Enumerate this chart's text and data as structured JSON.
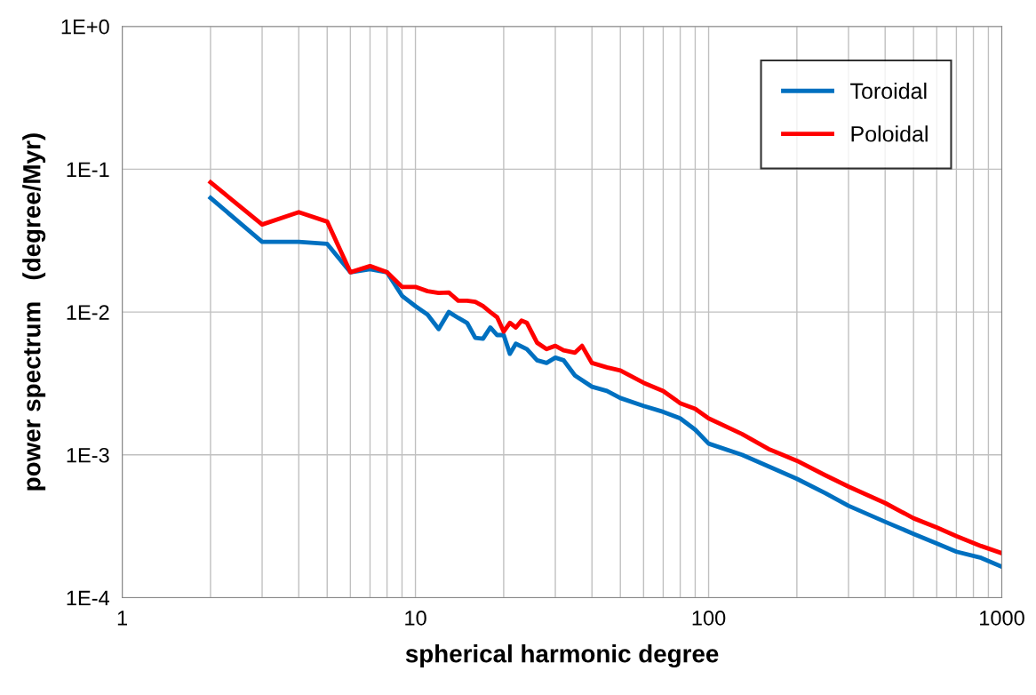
{
  "chart_data": {
    "type": "line",
    "xlabel": "spherical harmonic degree",
    "ylabel": "power spectrum   (degree/Myr)",
    "log": "xy",
    "grid": true,
    "legend": "top right",
    "line_style": "solid",
    "marker": "none",
    "xlim": [
      1,
      1000
    ],
    "ylim": [
      0.0001,
      1
    ],
    "xticks": [
      1,
      {
        "value": 2,
        "label": null
      },
      {
        "value": 3,
        "label": null
      },
      {
        "value": 4,
        "label": null
      },
      {
        "value": 5,
        "label": null
      },
      {
        "value": 6,
        "label": null
      },
      {
        "value": 7,
        "label": null
      },
      {
        "value": 8,
        "label": null
      },
      {
        "value": 9,
        "label": null
      },
      10,
      {
        "value": 20,
        "label": null
      },
      {
        "value": 30,
        "label": null
      },
      {
        "value": 40,
        "label": null
      },
      {
        "value": 50,
        "label": null
      },
      {
        "value": 60,
        "label": null
      },
      {
        "value": 70,
        "label": null
      },
      {
        "value": 80,
        "label": null
      },
      {
        "value": 90,
        "label": null
      },
      100,
      {
        "value": 200,
        "label": null
      },
      {
        "value": 300,
        "label": null
      },
      {
        "value": 400,
        "label": null
      },
      {
        "value": 500,
        "label": null
      },
      {
        "value": 600,
        "label": null
      },
      {
        "value": 700,
        "label": null
      },
      {
        "value": 800,
        "label": null
      },
      {
        "value": 900,
        "label": null
      },
      1000
    ],
    "yticks": [
      {
        "value": 0.0001,
        "label": "1E-4"
      },
      {
        "value": 0.001,
        "label": "1E-3"
      },
      {
        "value": 0.01,
        "label": "1E-2"
      },
      {
        "value": 0.1,
        "label": "1E-1"
      },
      {
        "value": 1,
        "label": "1E+0"
      }
    ],
    "series": [
      {
        "name": "Toroidal",
        "color": "#0070c0",
        "x": [
          2,
          3,
          4,
          5,
          6,
          7,
          8,
          9,
          10,
          11,
          12,
          13,
          14,
          15,
          16,
          17,
          18,
          19,
          20,
          21,
          22,
          24,
          26,
          28,
          30,
          32,
          35,
          40,
          45,
          50,
          60,
          70,
          80,
          90,
          100,
          130,
          160,
          200,
          250,
          300,
          400,
          500,
          600,
          700,
          850,
          1000
        ],
        "values": [
          0.063,
          0.031,
          0.031,
          0.03,
          0.019,
          0.02,
          0.019,
          0.013,
          0.011,
          0.0096,
          0.0076,
          0.01,
          0.0091,
          0.0084,
          0.0066,
          0.0065,
          0.0078,
          0.0069,
          0.0069,
          0.0051,
          0.006,
          0.0055,
          0.0046,
          0.0044,
          0.0048,
          0.0046,
          0.0036,
          0.003,
          0.0028,
          0.0025,
          0.0022,
          0.002,
          0.0018,
          0.0015,
          0.0012,
          0.001,
          0.00083,
          0.00068,
          0.00054,
          0.00044,
          0.00034,
          0.00028,
          0.00024,
          0.00021,
          0.00019,
          0.000165
        ]
      },
      {
        "name": "Poloidal",
        "color": "#ff0000",
        "x": [
          2,
          3,
          4,
          5,
          6,
          7,
          8,
          9,
          10,
          11,
          12,
          13,
          14,
          15,
          16,
          17,
          18,
          19,
          20,
          21,
          22,
          23,
          24,
          26,
          28,
          30,
          32,
          35,
          37,
          40,
          45,
          50,
          60,
          70,
          80,
          90,
          100,
          130,
          160,
          200,
          250,
          300,
          400,
          500,
          600,
          700,
          850,
          1000
        ],
        "values": [
          0.081,
          0.041,
          0.05,
          0.043,
          0.019,
          0.021,
          0.019,
          0.015,
          0.015,
          0.014,
          0.0136,
          0.0137,
          0.012,
          0.012,
          0.0118,
          0.011,
          0.01,
          0.0092,
          0.0073,
          0.0084,
          0.0078,
          0.0087,
          0.0084,
          0.0061,
          0.0055,
          0.0058,
          0.0054,
          0.0052,
          0.0058,
          0.0044,
          0.0041,
          0.0039,
          0.0032,
          0.0028,
          0.0023,
          0.0021,
          0.0018,
          0.0014,
          0.0011,
          0.00091,
          0.00072,
          0.0006,
          0.00046,
          0.00036,
          0.00031,
          0.00027,
          0.00023,
          0.000205
        ]
      }
    ]
  }
}
